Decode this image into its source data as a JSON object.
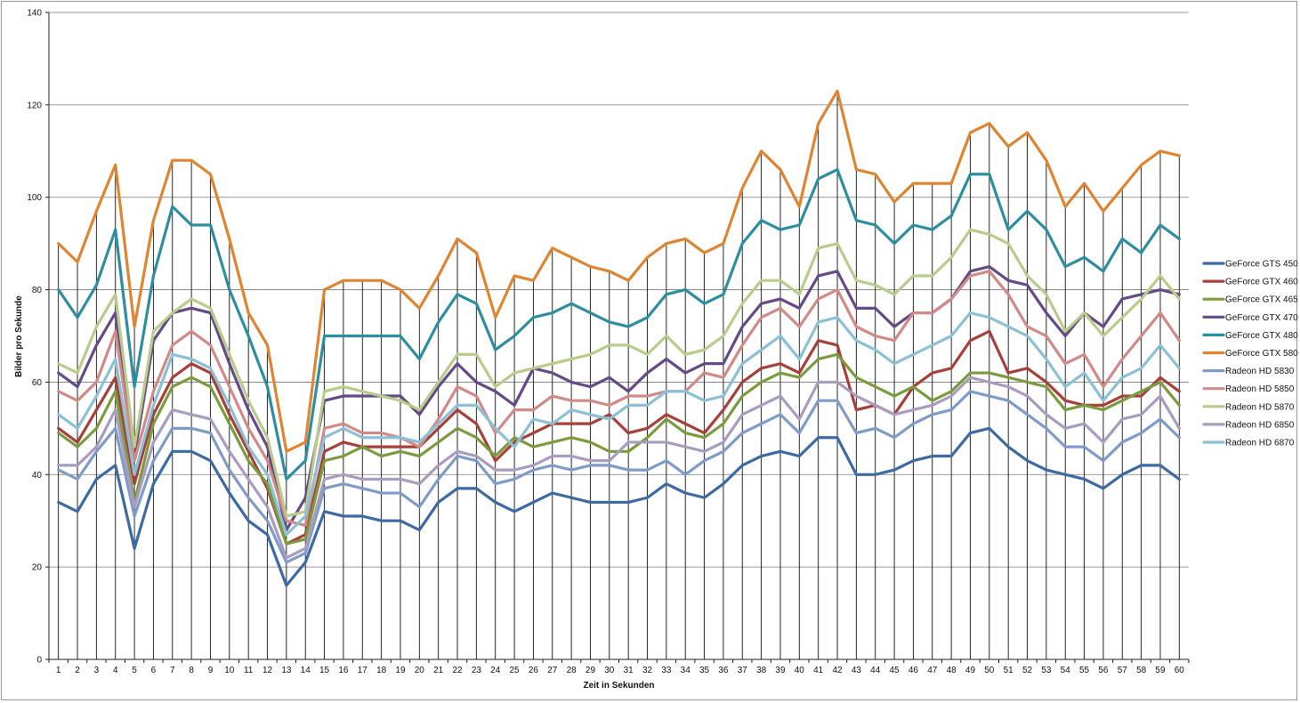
{
  "chart_data": {
    "type": "line",
    "title": "",
    "xlabel": "Zeit in Sekunden",
    "ylabel": "Bilder pro Sekunde",
    "ylim": [
      0,
      140
    ],
    "yticks": [
      0,
      20,
      40,
      60,
      80,
      100,
      120,
      140
    ],
    "grid": "horizontal major gridlines, vertical drop lines at each x value",
    "legend": "right",
    "x": [
      1,
      2,
      3,
      4,
      5,
      6,
      7,
      8,
      9,
      10,
      11,
      12,
      13,
      14,
      15,
      16,
      17,
      18,
      19,
      20,
      21,
      22,
      23,
      24,
      25,
      26,
      27,
      28,
      29,
      30,
      31,
      32,
      33,
      34,
      35,
      36,
      37,
      38,
      39,
      40,
      41,
      42,
      43,
      44,
      45,
      46,
      47,
      48,
      49,
      50,
      51,
      52,
      53,
      54,
      55,
      56,
      57,
      58,
      59,
      60
    ],
    "series": [
      {
        "name": "GeForce GTS 450",
        "color": "#3d6aa2",
        "values": [
          34,
          32,
          39,
          42,
          24,
          38,
          45,
          45,
          43,
          36,
          30,
          27,
          16,
          21,
          32,
          31,
          31,
          30,
          30,
          28,
          34,
          37,
          37,
          34,
          32,
          34,
          36,
          35,
          34,
          34,
          34,
          35,
          38,
          36,
          35,
          38,
          42,
          44,
          45,
          44,
          48,
          48,
          40,
          40,
          41,
          43,
          44,
          44,
          49,
          50,
          46,
          43,
          41,
          40,
          39,
          37,
          40,
          42,
          42,
          39
        ]
      },
      {
        "name": "GeForce GTX 460",
        "color": "#a6403a",
        "values": [
          50,
          47,
          54,
          61,
          38,
          53,
          61,
          64,
          62,
          53,
          45,
          37,
          25,
          27,
          45,
          47,
          46,
          46,
          46,
          46,
          50,
          54,
          51,
          43,
          47,
          49,
          51,
          51,
          51,
          53,
          49,
          50,
          53,
          51,
          49,
          54,
          60,
          63,
          64,
          62,
          69,
          68,
          54,
          55,
          53,
          59,
          62,
          63,
          69,
          71,
          62,
          63,
          60,
          56,
          55,
          55,
          57,
          57,
          61,
          58
        ]
      },
      {
        "name": "GeForce GTX 465",
        "color": "#7c9b3f",
        "values": [
          49,
          46,
          50,
          58,
          34,
          51,
          59,
          61,
          59,
          51,
          43,
          38,
          25,
          26,
          43,
          44,
          46,
          44,
          45,
          44,
          47,
          50,
          48,
          44,
          48,
          46,
          47,
          48,
          47,
          45,
          45,
          48,
          52,
          49,
          48,
          51,
          57,
          60,
          62,
          61,
          65,
          66,
          61,
          59,
          57,
          59,
          56,
          58,
          62,
          62,
          61,
          60,
          59,
          54,
          55,
          54,
          56,
          58,
          60,
          55
        ]
      },
      {
        "name": "GeForce GTX 470",
        "color": "#644a86",
        "values": [
          62,
          59,
          68,
          75,
          44,
          69,
          75,
          76,
          75,
          64,
          54,
          46,
          28,
          35,
          56,
          57,
          57,
          57,
          57,
          53,
          59,
          64,
          60,
          58,
          55,
          63,
          62,
          60,
          59,
          61,
          58,
          62,
          65,
          62,
          64,
          64,
          72,
          77,
          78,
          76,
          83,
          84,
          76,
          76,
          72,
          75,
          75,
          78,
          84,
          85,
          82,
          81,
          75,
          70,
          75,
          72,
          78,
          79,
          80,
          79
        ]
      },
      {
        "name": "GeForce GTX 480",
        "color": "#2d8ea0",
        "values": [
          80,
          74,
          81,
          93,
          59,
          83,
          98,
          94,
          94,
          80,
          70,
          59,
          39,
          43,
          70,
          70,
          70,
          70,
          70,
          65,
          73,
          79,
          77,
          67,
          70,
          74,
          75,
          77,
          75,
          73,
          72,
          74,
          79,
          80,
          77,
          79,
          90,
          95,
          93,
          94,
          104,
          106,
          95,
          94,
          90,
          94,
          93,
          96,
          105,
          105,
          93,
          97,
          93,
          85,
          87,
          84,
          91,
          88,
          94,
          91
        ]
      },
      {
        "name": "GeForce GTX 580",
        "color": "#df8532",
        "values": [
          90,
          86,
          97,
          107,
          72,
          95,
          108,
          108,
          105,
          91,
          75,
          68,
          45,
          47,
          80,
          82,
          82,
          82,
          80,
          76,
          83,
          91,
          88,
          74,
          83,
          82,
          89,
          87,
          85,
          84,
          82,
          87,
          90,
          91,
          88,
          90,
          102,
          110,
          106,
          98,
          116,
          123,
          106,
          105,
          99,
          103,
          103,
          103,
          114,
          116,
          111,
          114,
          108,
          98,
          103,
          97,
          102,
          107,
          110,
          109
        ]
      },
      {
        "name": "Radeon HD 5830",
        "color": "#7f9cc8",
        "values": [
          41,
          39,
          45,
          50,
          31,
          43,
          50,
          50,
          49,
          41,
          35,
          30,
          21,
          23,
          37,
          38,
          37,
          36,
          36,
          33,
          39,
          44,
          43,
          38,
          39,
          41,
          42,
          41,
          42,
          42,
          41,
          41,
          43,
          40,
          43,
          45,
          49,
          51,
          53,
          49,
          56,
          56,
          49,
          50,
          48,
          51,
          53,
          54,
          58,
          57,
          56,
          53,
          50,
          46,
          46,
          43,
          47,
          49,
          52,
          48
        ]
      },
      {
        "name": "Radeon HD 5850",
        "color": "#d18a87",
        "values": [
          58,
          56,
          60,
          71,
          43,
          58,
          68,
          71,
          68,
          59,
          50,
          43,
          30,
          29,
          50,
          51,
          49,
          49,
          48,
          46,
          52,
          59,
          57,
          49,
          54,
          54,
          57,
          56,
          56,
          55,
          57,
          57,
          58,
          58,
          62,
          61,
          68,
          74,
          76,
          72,
          78,
          80,
          72,
          70,
          69,
          75,
          75,
          78,
          83,
          84,
          79,
          72,
          70,
          64,
          66,
          59,
          65,
          70,
          75,
          69
        ]
      },
      {
        "name": "Radeon HD 5870",
        "color": "#b8cc8c",
        "values": [
          64,
          62,
          72,
          79,
          46,
          71,
          75,
          78,
          76,
          66,
          56,
          48,
          31,
          32,
          58,
          59,
          58,
          57,
          56,
          54,
          60,
          66,
          66,
          59,
          62,
          63,
          64,
          65,
          66,
          68,
          68,
          66,
          70,
          66,
          67,
          70,
          77,
          82,
          82,
          79,
          89,
          90,
          82,
          81,
          79,
          83,
          83,
          87,
          93,
          92,
          90,
          83,
          79,
          71,
          75,
          70,
          74,
          78,
          83,
          78
        ]
      },
      {
        "name": "Radeon HD 6850",
        "color": "#a99cbf",
        "values": [
          42,
          42,
          46,
          54,
          33,
          47,
          54,
          53,
          52,
          45,
          39,
          33,
          22,
          24,
          39,
          40,
          39,
          39,
          39,
          38,
          42,
          45,
          44,
          41,
          41,
          42,
          44,
          44,
          43,
          43,
          47,
          47,
          47,
          46,
          45,
          47,
          53,
          55,
          57,
          52,
          60,
          60,
          57,
          55,
          53,
          54,
          55,
          57,
          61,
          60,
          59,
          57,
          53,
          50,
          51,
          47,
          52,
          53,
          57,
          50
        ]
      },
      {
        "name": "Radeon HD 6870",
        "color": "#8cc0d6",
        "values": [
          53,
          50,
          57,
          65,
          40,
          55,
          66,
          65,
          63,
          55,
          46,
          40,
          27,
          31,
          48,
          50,
          48,
          48,
          48,
          47,
          51,
          55,
          55,
          50,
          46,
          52,
          51,
          54,
          53,
          52,
          55,
          55,
          58,
          58,
          56,
          57,
          64,
          67,
          70,
          65,
          73,
          74,
          69,
          67,
          64,
          66,
          68,
          70,
          75,
          74,
          72,
          70,
          65,
          59,
          62,
          56,
          61,
          63,
          68,
          63
        ]
      }
    ]
  }
}
